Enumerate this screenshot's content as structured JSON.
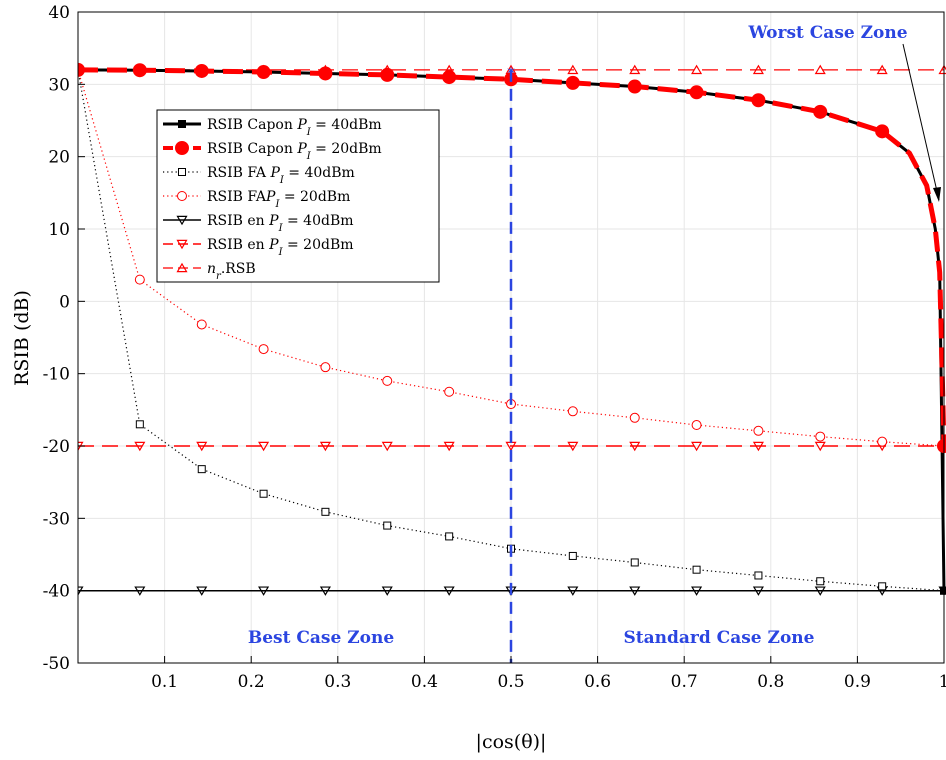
{
  "chart_data": {
    "type": "line",
    "xlabel": "|cos(θ)|",
    "ylabel": "RSIB (dB)",
    "xlim": [
      0,
      1
    ],
    "ylim": [
      -50,
      40
    ],
    "x_ticks": [
      "0.1",
      "0.2",
      "0.3",
      "0.4",
      "0.5",
      "0.6",
      "0.7",
      "0.8",
      "0.9",
      "1"
    ],
    "y_ticks": [
      "40",
      "30",
      "20",
      "10",
      "0",
      "-10",
      "-20",
      "-30",
      "-40",
      "-50"
    ],
    "grid": true,
    "legend_position": "upper-left",
    "series": [
      {
        "name": "RSIB Capon P_I = 40dBm",
        "color": "#000000",
        "line": "solid",
        "marker": "square-filled",
        "x": [
          0,
          0.0714,
          0.1429,
          0.2143,
          0.2857,
          0.3571,
          0.4286,
          0.5,
          0.5714,
          0.6429,
          0.7143,
          0.7857,
          0.8571,
          0.9286,
          0.96,
          0.98,
          0.99,
          0.995,
          1.0
        ],
        "y": [
          32,
          31.95,
          31.85,
          31.7,
          31.5,
          31.3,
          31.0,
          30.7,
          30.2,
          29.7,
          28.9,
          27.8,
          26.2,
          23.5,
          20.5,
          16,
          10,
          4,
          -40
        ]
      },
      {
        "name": "RSIB Capon P_I = 20dBm",
        "color": "#ff0000",
        "line": "dashed",
        "marker": "circle-filled",
        "x": [
          0,
          0.0714,
          0.1429,
          0.2143,
          0.2857,
          0.3571,
          0.4286,
          0.5,
          0.5714,
          0.6429,
          0.7143,
          0.7857,
          0.8571,
          0.9286,
          0.96,
          0.98,
          0.99,
          0.995,
          1.0
        ],
        "y": [
          32,
          31.95,
          31.85,
          31.7,
          31.5,
          31.3,
          31.0,
          30.7,
          30.2,
          29.7,
          28.9,
          27.8,
          26.2,
          23.5,
          20.5,
          16,
          10,
          4,
          -20
        ]
      },
      {
        "name": "RSIB FA P_I = 40dBm",
        "color": "#000000",
        "line": "dotted",
        "marker": "square-open",
        "x": [
          0,
          0.0714,
          0.1429,
          0.2143,
          0.2857,
          0.3571,
          0.4286,
          0.5,
          0.5714,
          0.6429,
          0.7143,
          0.7857,
          0.8571,
          0.9286,
          1.0
        ],
        "y": [
          32,
          -17.0,
          -23.2,
          -26.6,
          -29.1,
          -31.0,
          -32.5,
          -34.2,
          -35.2,
          -36.1,
          -37.1,
          -37.9,
          -38.7,
          -39.4,
          -40
        ]
      },
      {
        "name": "RSIB FA P_I = 20dBm",
        "color": "#ff0000",
        "line": "dotted",
        "marker": "circle-open",
        "x": [
          0,
          0.0714,
          0.1429,
          0.2143,
          0.2857,
          0.3571,
          0.4286,
          0.5,
          0.5714,
          0.6429,
          0.7143,
          0.7857,
          0.8571,
          0.9286,
          1.0
        ],
        "y": [
          32,
          3.0,
          -3.2,
          -6.6,
          -9.1,
          -11.0,
          -12.5,
          -14.2,
          -15.2,
          -16.1,
          -17.1,
          -17.9,
          -18.7,
          -19.4,
          -20
        ]
      },
      {
        "name": "RSIB en P_I = 40dBm",
        "color": "#000000",
        "line": "solid",
        "marker": "triangle-down",
        "x": [
          0,
          0.0714,
          0.1429,
          0.2143,
          0.2857,
          0.3571,
          0.4286,
          0.5,
          0.5714,
          0.6429,
          0.7143,
          0.7857,
          0.8571,
          0.9286,
          1.0
        ],
        "y": [
          -40,
          -40,
          -40,
          -40,
          -40,
          -40,
          -40,
          -40,
          -40,
          -40,
          -40,
          -40,
          -40,
          -40,
          -40
        ]
      },
      {
        "name": "RSIB en P_I = 20dBm",
        "color": "#ff0000",
        "line": "dashed",
        "marker": "triangle-down",
        "x": [
          0,
          0.0714,
          0.1429,
          0.2143,
          0.2857,
          0.3571,
          0.4286,
          0.5,
          0.5714,
          0.6429,
          0.7143,
          0.7857,
          0.8571,
          0.9286,
          1.0
        ],
        "y": [
          -20,
          -20,
          -20,
          -20,
          -20,
          -20,
          -20,
          -20,
          -20,
          -20,
          -20,
          -20,
          -20,
          -20,
          -20
        ]
      },
      {
        "name": "n_r.RSB",
        "color": "#ff0000",
        "line": "dashed",
        "marker": "triangle-up",
        "x": [
          0,
          0.0714,
          0.1429,
          0.2143,
          0.2857,
          0.3571,
          0.4286,
          0.5,
          0.5714,
          0.6429,
          0.7143,
          0.7857,
          0.8571,
          0.9286,
          1.0
        ],
        "y": [
          32,
          32,
          32,
          32,
          32,
          32,
          32,
          32,
          32,
          32,
          32,
          32,
          32,
          32,
          32
        ]
      }
    ],
    "legend": [
      {
        "base": "RSIB Capon ",
        "var": "P",
        "sub": "I",
        "tail": " = 40dBm"
      },
      {
        "base": "RSIB Capon ",
        "var": "P",
        "sub": "I",
        "tail": " = 20dBm"
      },
      {
        "base": "RSIB FA ",
        "var": "P",
        "sub": "I",
        "tail": " = 40dBm"
      },
      {
        "base": "RSIB FA",
        "var": "P",
        "sub": "I",
        "tail": " = 20dBm"
      },
      {
        "base": "RSIB en ",
        "var": "P",
        "sub": "I",
        "tail": " = 40dBm"
      },
      {
        "base": "RSIB en ",
        "var": "P",
        "sub": "I",
        "tail": " = 20dBm"
      },
      {
        "base": "",
        "var": "n",
        "sub": "r",
        "tail": ".RSB"
      }
    ],
    "annotations": {
      "divider_x": 0.5,
      "divider_color": "#2b45e0",
      "best_case_label": "Best Case Zone",
      "standard_case_label": "Standard Case Zone",
      "worst_case_label": "Worst Case Zone",
      "zone_label_color": "#2b45e0"
    }
  }
}
